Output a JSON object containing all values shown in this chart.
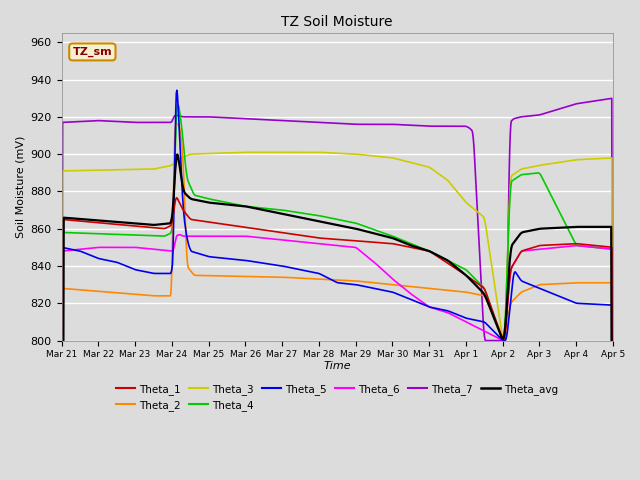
{
  "title": "TZ Soil Moisture",
  "xlabel": "Time",
  "ylabel": "Soil Moisture (mV)",
  "ylim": [
    800,
    965
  ],
  "background_color": "#dcdcdc",
  "plot_bg_color": "#dcdcdc",
  "label_box": "TZ_sm",
  "series_colors": {
    "Theta_1": "#cc0000",
    "Theta_2": "#ff8800",
    "Theta_3": "#cccc00",
    "Theta_4": "#00cc00",
    "Theta_5": "#0000ee",
    "Theta_6": "#ff00ff",
    "Theta_7": "#9900cc",
    "Theta_avg": "#000000"
  },
  "xtick_labels": [
    "Mar 21",
    "Mar 22",
    "Mar 23",
    "Mar 24",
    "Mar 25",
    "Mar 26",
    "Mar 27",
    "Mar 28",
    "Mar 29",
    "Mar 30",
    "Mar 31",
    "Apr 1",
    "Apr 2",
    "Apr 3",
    "Apr 4",
    "Apr 5"
  ],
  "ytick_values": [
    800,
    820,
    840,
    860,
    880,
    900,
    920,
    940,
    960
  ],
  "legend_order": [
    "Theta_1",
    "Theta_2",
    "Theta_3",
    "Theta_4",
    "Theta_5",
    "Theta_6",
    "Theta_7",
    "Theta_avg"
  ]
}
